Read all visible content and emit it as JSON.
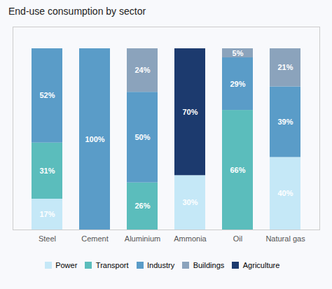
{
  "chart_data": {
    "type": "bar",
    "title": "End-use consumption by sector",
    "categories": [
      "Steel",
      "Cement",
      "Aluminium",
      "Ammonia",
      "Oil",
      "Natural gas"
    ],
    "series": [
      {
        "name": "Power",
        "color": "#c5e8f7",
        "values": [
          17,
          0,
          0,
          30,
          0,
          40
        ],
        "value_labels": [
          "17%",
          null,
          null,
          "30%",
          null,
          "40%"
        ]
      },
      {
        "name": "Transport",
        "color": "#5bbdbc",
        "values": [
          31,
          0,
          26,
          0,
          66,
          0
        ],
        "value_labels": [
          "31%",
          null,
          "26%",
          null,
          "66%",
          null
        ]
      },
      {
        "name": "Industry",
        "color": "#5a9cc8",
        "values": [
          52,
          100,
          50,
          0,
          29,
          39
        ],
        "value_labels": [
          "52%",
          "100%",
          "50%",
          null,
          "29%",
          "39%"
        ]
      },
      {
        "name": "Buildings",
        "color": "#8ba3bc",
        "values": [
          0,
          0,
          24,
          0,
          5,
          21
        ],
        "value_labels": [
          null,
          null,
          "24%",
          null,
          "5%",
          "21%"
        ]
      },
      {
        "name": "Agriculture",
        "color": "#1c3a6e",
        "values": [
          0,
          0,
          0,
          70,
          0,
          0
        ],
        "value_labels": [
          null,
          null,
          null,
          "70%",
          null,
          null
        ]
      }
    ],
    "ylim": [
      0,
      112
    ],
    "stacked": true,
    "data_labels": true,
    "tick_labels": "x",
    "grid": false,
    "legend": "bottom"
  }
}
